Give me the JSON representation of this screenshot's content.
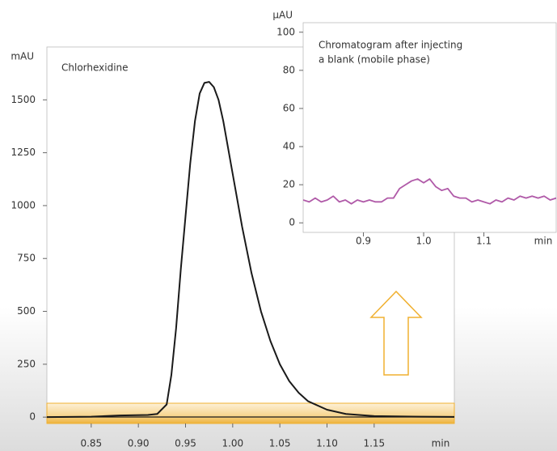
{
  "chart_data": [
    {
      "type": "line",
      "title": "Chlorhexidine",
      "y_label": "mAU",
      "x_label": "min",
      "x": [
        0.8,
        0.85,
        0.88,
        0.91,
        0.92,
        0.93,
        0.935,
        0.94,
        0.945,
        0.95,
        0.955,
        0.96,
        0.965,
        0.97,
        0.975,
        0.98,
        0.985,
        0.99,
        1.0,
        1.01,
        1.02,
        1.03,
        1.04,
        1.05,
        1.06,
        1.07,
        1.08,
        1.1,
        1.12,
        1.15,
        1.2,
        1.235
      ],
      "series": [
        {
          "color": "#1a1a1a",
          "values": [
            0,
            2,
            8,
            10,
            15,
            60,
            200,
            420,
            700,
            950,
            1200,
            1400,
            1530,
            1580,
            1585,
            1560,
            1500,
            1400,
            1150,
            900,
            680,
            500,
            360,
            250,
            170,
            115,
            75,
            35,
            15,
            5,
            2,
            1
          ]
        }
      ],
      "xlim": [
        0.803,
        1.235
      ],
      "ylim": [
        -30,
        1750
      ],
      "xticks": [
        0.85,
        {
          "value": 0.9,
          "label": "0.90"
        },
        0.95,
        {
          "value": 1.0,
          "label": "1.00"
        },
        1.05,
        {
          "value": 1.1,
          "label": "1.10"
        },
        1.15
      ],
      "yticks": [
        0,
        250,
        500,
        750,
        1000,
        1250,
        1500
      ]
    },
    {
      "type": "line",
      "title": [
        "Chromatogram after injecting",
        "a blank (mobile phase)"
      ],
      "y_label": "µAU",
      "x_label": "min",
      "x": [
        0.8,
        0.81,
        0.82,
        0.83,
        0.84,
        0.85,
        0.86,
        0.87,
        0.88,
        0.89,
        0.9,
        0.91,
        0.92,
        0.93,
        0.94,
        0.95,
        0.96,
        0.97,
        0.98,
        0.99,
        1.0,
        1.01,
        1.02,
        1.03,
        1.04,
        1.05,
        1.06,
        1.07,
        1.08,
        1.09,
        1.1,
        1.11,
        1.12,
        1.13,
        1.14,
        1.15,
        1.16,
        1.17,
        1.18,
        1.19,
        1.2,
        1.21,
        1.22
      ],
      "series": [
        {
          "color": "#b05aa8",
          "values": [
            12,
            11,
            13,
            11,
            12,
            14,
            11,
            12,
            10,
            12,
            11,
            12,
            11,
            11,
            13,
            13,
            18,
            20,
            22,
            23,
            21,
            23,
            19,
            17,
            18,
            14,
            13,
            13,
            11,
            12,
            11,
            10,
            12,
            11,
            13,
            12,
            14,
            13,
            14,
            13,
            14,
            12,
            13
          ]
        }
      ],
      "xlim": [
        0.8,
        1.22
      ],
      "ylim": [
        -5,
        105
      ],
      "xticks": [
        0.9,
        {
          "value": 1.0,
          "label": "1.0"
        },
        1.1
      ],
      "yticks": [
        0,
        20,
        40,
        60,
        80,
        100
      ]
    }
  ]
}
